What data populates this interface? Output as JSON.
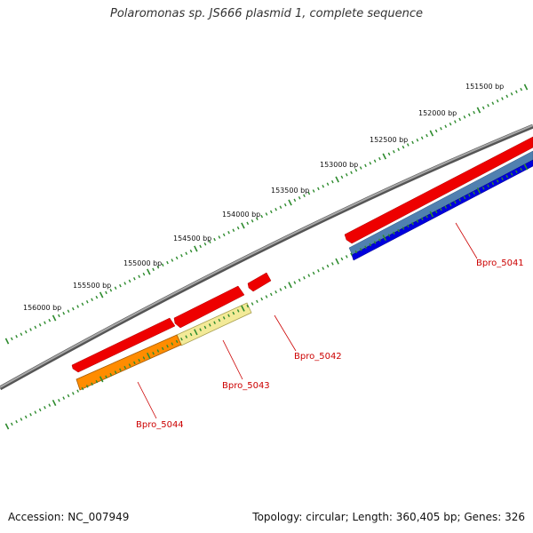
{
  "title": "Polaromonas sp. JS666 plasmid 1, complete sequence",
  "footer": {
    "accession": "Accession: NC_007949",
    "summary": "Topology: circular; Length: 360,405 bp; Genes: 326"
  },
  "ruler": {
    "labels": [
      "151500 bp",
      "152000 bp",
      "152500 bp",
      "153000 bp",
      "153500 bp",
      "154000 bp",
      "154500 bp",
      "155000 bp",
      "155500 bp",
      "156000 bp"
    ]
  },
  "genes": [
    {
      "label": "Bpro_5041"
    },
    {
      "label": "Bpro_5042"
    },
    {
      "label": "Bpro_5043"
    },
    {
      "label": "Bpro_5044"
    }
  ],
  "colors": {
    "backbone": "#808080",
    "tick": "#2e8b2e",
    "cds_forward": "#ee0000",
    "orf_blue": "#0000dd",
    "orf_steel": "#5080b0",
    "orf_khaki": "#f0e68c",
    "orf_orange": "#ff8c00",
    "label": "#cc0000"
  }
}
